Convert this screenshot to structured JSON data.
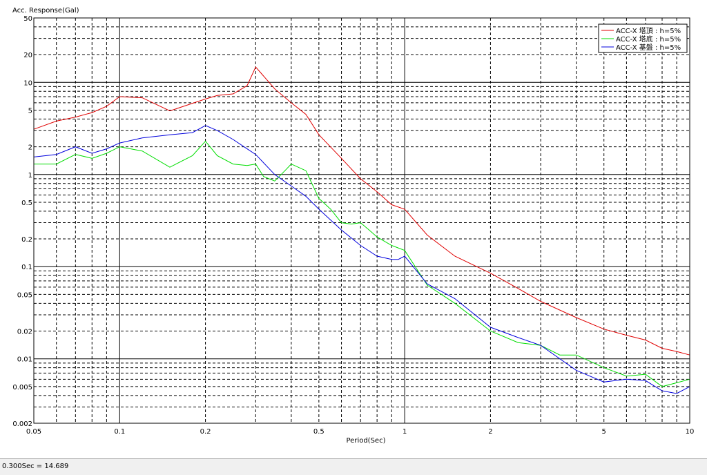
{
  "status_bar": {
    "readout": "0.300Sec = 14.689"
  },
  "colors": {
    "series_top": "#e00000",
    "series_bottom": "#00dd00",
    "series_base": "#0000dd",
    "grid": "#000000",
    "background": "#ffffff"
  },
  "chart_data": {
    "type": "line",
    "title": "",
    "ylabel": "Acc. Response(Gal)",
    "xlabel": "Period(Sec)",
    "xscale": "log",
    "yscale": "log",
    "xlim": [
      0.05,
      10
    ],
    "ylim": [
      0.002,
      50
    ],
    "grid": true,
    "legend_position": "top-right",
    "x_tick_labels": [
      {
        "v": 0.05,
        "t": "0.05"
      },
      {
        "v": 0.1,
        "t": "0.1"
      },
      {
        "v": 0.2,
        "t": "0.2"
      },
      {
        "v": 0.5,
        "t": "0.5"
      },
      {
        "v": 1,
        "t": "1"
      },
      {
        "v": 2,
        "t": "2"
      },
      {
        "v": 5,
        "t": "5"
      },
      {
        "v": 10,
        "t": "10"
      }
    ],
    "y_tick_labels": [
      {
        "v": 50,
        "t": "50"
      },
      {
        "v": 20,
        "t": "20"
      },
      {
        "v": 10,
        "t": "10"
      },
      {
        "v": 5,
        "t": "5"
      },
      {
        "v": 2,
        "t": "2"
      },
      {
        "v": 1,
        "t": "1"
      },
      {
        "v": 0.5,
        "t": "0.5"
      },
      {
        "v": 0.2,
        "t": "0.2"
      },
      {
        "v": 0.1,
        "t": "0.1"
      },
      {
        "v": 0.05,
        "t": "0.05"
      },
      {
        "v": 0.02,
        "t": "0.02"
      },
      {
        "v": 0.01,
        "t": "0.01"
      },
      {
        "v": 0.005,
        "t": "0.005"
      },
      {
        "v": 0.002,
        "t": "0.002"
      }
    ],
    "series": [
      {
        "name": "ACC-X 塔頂 : h=5%",
        "color": "#e00000",
        "x": [
          0.05,
          0.06,
          0.07,
          0.08,
          0.09,
          0.1,
          0.12,
          0.15,
          0.2,
          0.22,
          0.25,
          0.28,
          0.3,
          0.35,
          0.4,
          0.45,
          0.5,
          0.6,
          0.7,
          0.8,
          0.9,
          1,
          1.2,
          1.5,
          2,
          2.5,
          3,
          4,
          5,
          6,
          7,
          8,
          9,
          10
        ],
        "values": [
          3.1,
          3.8,
          4.2,
          4.7,
          5.5,
          7.0,
          6.8,
          4.9,
          6.6,
          7.2,
          7.5,
          9.2,
          14.689,
          8.5,
          6.0,
          4.5,
          2.7,
          1.5,
          0.9,
          0.65,
          0.47,
          0.42,
          0.22,
          0.13,
          0.085,
          0.058,
          0.042,
          0.028,
          0.021,
          0.018,
          0.016,
          0.013,
          0.012,
          0.011
        ]
      },
      {
        "name": "ACC-X 塔底 : h=5%",
        "color": "#00dd00",
        "x": [
          0.05,
          0.06,
          0.07,
          0.08,
          0.09,
          0.1,
          0.12,
          0.15,
          0.18,
          0.2,
          0.22,
          0.25,
          0.28,
          0.3,
          0.32,
          0.35,
          0.38,
          0.4,
          0.45,
          0.5,
          0.55,
          0.6,
          0.65,
          0.7,
          0.75,
          0.8,
          0.9,
          1,
          1.2,
          1.5,
          2,
          2.5,
          3,
          3.5,
          4,
          5,
          6,
          7,
          8,
          9,
          10
        ],
        "values": [
          1.3,
          1.3,
          1.65,
          1.5,
          1.7,
          2.0,
          1.8,
          1.2,
          1.6,
          2.3,
          1.6,
          1.3,
          1.25,
          1.3,
          0.95,
          0.85,
          1.1,
          1.3,
          1.1,
          0.55,
          0.42,
          0.3,
          0.29,
          0.3,
          0.25,
          0.21,
          0.17,
          0.15,
          0.063,
          0.04,
          0.02,
          0.015,
          0.014,
          0.011,
          0.011,
          0.008,
          0.0065,
          0.0068,
          0.005,
          0.0055,
          0.006
        ]
      },
      {
        "name": "ACC-X 基盤 : h=5%",
        "color": "#0000dd",
        "x": [
          0.05,
          0.06,
          0.07,
          0.08,
          0.09,
          0.1,
          0.12,
          0.15,
          0.18,
          0.2,
          0.22,
          0.25,
          0.28,
          0.3,
          0.35,
          0.4,
          0.45,
          0.5,
          0.6,
          0.7,
          0.8,
          0.9,
          0.95,
          1,
          1.2,
          1.5,
          2,
          2.5,
          3,
          4,
          5,
          6,
          7,
          8,
          9,
          10
        ],
        "values": [
          1.55,
          1.65,
          2.0,
          1.7,
          1.9,
          2.2,
          2.5,
          2.7,
          2.85,
          3.4,
          3.0,
          2.4,
          1.9,
          1.65,
          1.0,
          0.75,
          0.58,
          0.42,
          0.25,
          0.17,
          0.13,
          0.12,
          0.12,
          0.13,
          0.065,
          0.045,
          0.022,
          0.017,
          0.014,
          0.0075,
          0.0056,
          0.006,
          0.0058,
          0.0045,
          0.0042,
          0.005
        ]
      }
    ]
  }
}
